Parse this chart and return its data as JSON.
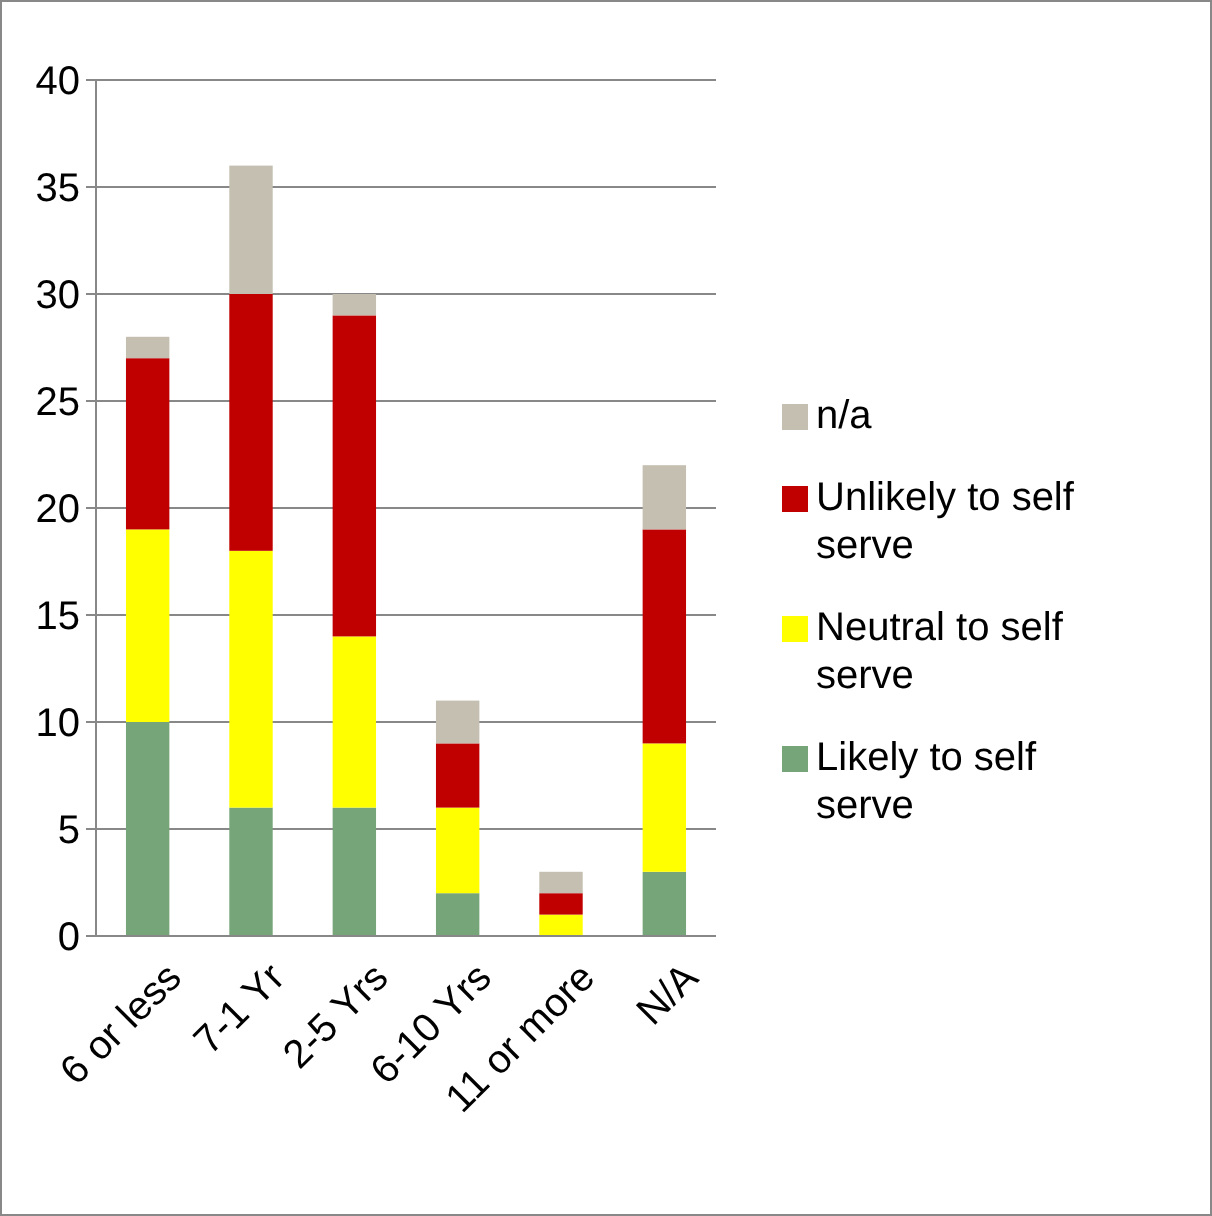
{
  "chart_data": {
    "type": "bar",
    "stacked": true,
    "categories": [
      "6 or less",
      "7-1 Yr",
      "2-5 Yrs",
      "6-10 Yrs",
      "11 or more",
      "N/A"
    ],
    "series": [
      {
        "name": "Likely to self serve",
        "color": "#77a57a",
        "values": [
          10,
          6,
          6,
          2,
          0,
          3
        ]
      },
      {
        "name": "Neutral to self serve",
        "color": "#ffff00",
        "values": [
          9,
          12,
          8,
          4,
          1,
          6
        ]
      },
      {
        "name": "Unlikely to self serve",
        "color": "#c00000",
        "values": [
          8,
          12,
          15,
          3,
          1,
          10
        ]
      },
      {
        "name": "n/a",
        "color": "#c4bfb0",
        "values": [
          1,
          6,
          1,
          2,
          1,
          3
        ]
      }
    ],
    "ylim": [
      0,
      40
    ],
    "yticks": [
      0,
      5,
      10,
      15,
      20,
      25,
      30,
      35,
      40
    ],
    "grid": "y",
    "legend": "right"
  }
}
